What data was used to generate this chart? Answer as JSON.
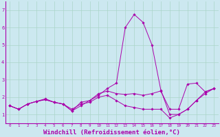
{
  "background_color": "#cce8f0",
  "grid_color": "#aad4c8",
  "line_color": "#aa00aa",
  "marker_color": "#aa00aa",
  "xlabel": "Windchill (Refroidissement éolien,°C)",
  "xlabel_fontsize": 6.5,
  "ytick_labels": [
    "1",
    "2",
    "3",
    "4",
    "5",
    "6",
    "7"
  ],
  "ytick_values": [
    1,
    2,
    3,
    4,
    5,
    6,
    7
  ],
  "xtick_labels": [
    "0",
    "1",
    "2",
    "3",
    "4",
    "5",
    "6",
    "7",
    "8",
    "9",
    "10",
    "11",
    "12",
    "13",
    "14",
    "15",
    "16",
    "17",
    "18",
    "19",
    "20",
    "21",
    "22",
    "23"
  ],
  "xlim": [
    -0.5,
    23.5
  ],
  "ylim": [
    0.5,
    7.5
  ],
  "series": [
    [
      1.5,
      1.3,
      1.6,
      1.75,
      1.85,
      1.7,
      1.6,
      1.2,
      1.5,
      1.8,
      2.1,
      2.5,
      2.8,
      6.0,
      6.75,
      6.3,
      5.0,
      2.4,
      1.0,
      1.0,
      1.3,
      1.8,
      2.3,
      2.5
    ],
    [
      1.5,
      1.3,
      1.6,
      1.75,
      1.85,
      1.7,
      1.6,
      1.2,
      1.7,
      1.8,
      2.2,
      2.35,
      2.2,
      2.15,
      2.2,
      2.1,
      2.2,
      2.35,
      1.3,
      1.3,
      2.75,
      2.8,
      2.3,
      2.5
    ],
    [
      1.5,
      1.3,
      1.6,
      1.75,
      1.9,
      1.7,
      1.6,
      1.3,
      1.6,
      1.7,
      2.0,
      2.1,
      1.8,
      1.5,
      1.4,
      1.3,
      1.3,
      1.3,
      0.8,
      1.0,
      1.3,
      1.8,
      2.2,
      2.5
    ]
  ]
}
